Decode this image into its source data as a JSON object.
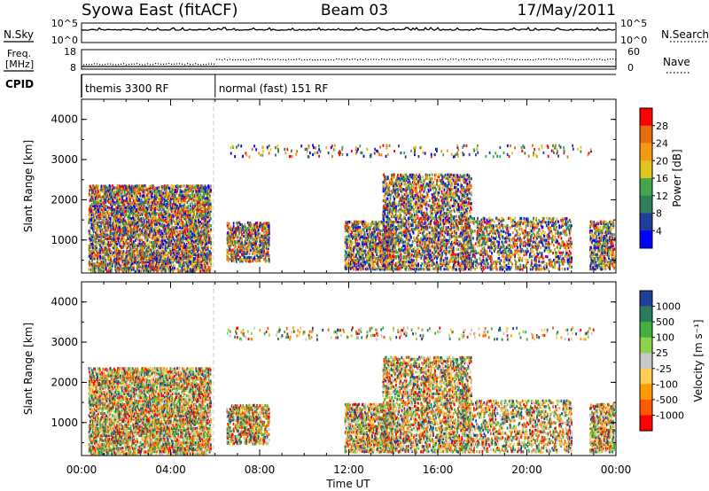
{
  "header": {
    "station": "Syowa East (fitACF)",
    "beam": "Beam 03",
    "date": "17/May/2011"
  },
  "strip_labels": {
    "nsky": "N.Sky",
    "nsky_tick_high": "10^5",
    "nsky_tick_low": "10^0",
    "nsearch": "N.Search",
    "nsearch_tick_high": "10^5",
    "nsearch_tick_low": "10^0",
    "freq_line1": "Freq.",
    "freq_line2": "[MHz]",
    "freq_tick_high": "18",
    "freq_tick_low": "8",
    "nave": "Nave",
    "nave_tick_high": "60",
    "nave_tick_low": "0",
    "cpid": "CPID"
  },
  "cpid_segments": [
    {
      "label": "themis 3300 RF",
      "start_hour": 0,
      "end_hour": 6
    },
    {
      "label": "normal (fast) 151 RF",
      "start_hour": 6,
      "end_hour": 24
    }
  ],
  "colors": {
    "power_scale": [
      "#0000ff",
      "#1d3f9a",
      "#2f7f58",
      "#44a64a",
      "#e3c41f",
      "#f39a14",
      "#e86d10",
      "#ff0000"
    ],
    "velocity_scale": [
      "#ff0000",
      "#ff5a00",
      "#ff9a00",
      "#ffcc55",
      "#c8c8c8",
      "#8cd24a",
      "#3fb13c",
      "#2a7d5a",
      "#1f3f9a"
    ]
  },
  "chart_data": [
    {
      "type": "heatmap",
      "parameter": "power",
      "ylabel": "Slant Range [km]",
      "xlim": [
        0,
        24
      ],
      "ylim": [
        180,
        4500
      ],
      "y_ticks": [
        "1000",
        "2000",
        "3000",
        "4000"
      ],
      "x_ticks": [
        "00:00",
        "04:00",
        "08:00",
        "12:00",
        "16:00",
        "20:00",
        "00:00"
      ],
      "colorbar_label": "Power [dB]",
      "colorbar_ticks": [
        "4",
        "8",
        "12",
        "16",
        "20",
        "24",
        "28"
      ],
      "regions": [
        {
          "t0": 0.3,
          "t1": 5.8,
          "r0": 250,
          "r1": 2400,
          "density": 0.55
        },
        {
          "t0": 6.5,
          "t1": 8.4,
          "r0": 500,
          "r1": 1500,
          "density": 0.5
        },
        {
          "t0": 11.8,
          "t1": 14.0,
          "r0": 300,
          "r1": 1500,
          "density": 0.5
        },
        {
          "t0": 13.5,
          "t1": 17.5,
          "r0": 300,
          "r1": 2700,
          "density": 0.4
        },
        {
          "t0": 17.0,
          "t1": 22.0,
          "r0": 300,
          "r1": 1600,
          "density": 0.3
        },
        {
          "t0": 22.8,
          "t1": 24.0,
          "r0": 300,
          "r1": 1500,
          "density": 0.5
        },
        {
          "t0": 6.5,
          "t1": 23.0,
          "r0": 3100,
          "r1": 3400,
          "density": 0.08
        }
      ]
    },
    {
      "type": "heatmap",
      "parameter": "velocity",
      "ylabel": "Slant Range [km]",
      "xlim": [
        0,
        24
      ],
      "ylim": [
        180,
        4500
      ],
      "y_ticks": [
        "1000",
        "2000",
        "3000",
        "4000"
      ],
      "x_ticks": [
        "00:00",
        "04:00",
        "08:00",
        "12:00",
        "16:00",
        "20:00",
        "00:00"
      ],
      "xlabel": "Time UT",
      "colorbar_label": "Velocity [m s⁻¹]",
      "colorbar_ticks": [
        "1000",
        "500",
        "100",
        "25",
        "-25",
        "-100",
        "-500",
        "-1000"
      ],
      "regions": [
        {
          "t0": 0.3,
          "t1": 5.8,
          "r0": 250,
          "r1": 2400,
          "density": 0.55
        },
        {
          "t0": 6.5,
          "t1": 8.4,
          "r0": 500,
          "r1": 1500,
          "density": 0.5
        },
        {
          "t0": 11.8,
          "t1": 14.0,
          "r0": 300,
          "r1": 1500,
          "density": 0.5
        },
        {
          "t0": 13.5,
          "t1": 17.5,
          "r0": 300,
          "r1": 2700,
          "density": 0.4
        },
        {
          "t0": 17.0,
          "t1": 22.0,
          "r0": 300,
          "r1": 1600,
          "density": 0.3
        },
        {
          "t0": 22.8,
          "t1": 24.0,
          "r0": 300,
          "r1": 1500,
          "density": 0.5
        },
        {
          "t0": 6.5,
          "t1": 23.0,
          "r0": 3100,
          "r1": 3400,
          "density": 0.08
        }
      ]
    }
  ]
}
